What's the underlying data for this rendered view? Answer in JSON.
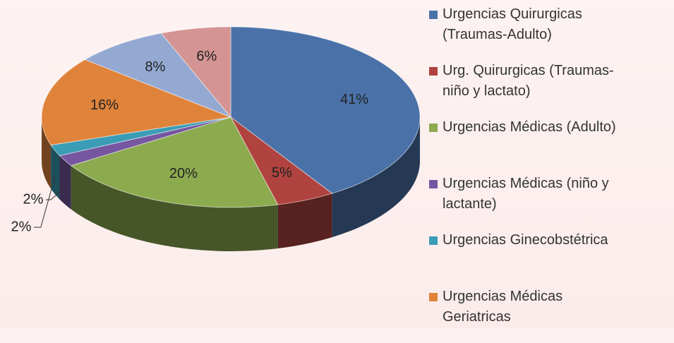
{
  "chart_data": {
    "type": "pie",
    "style": "3d",
    "categories": [
      "Urgencias Quirurgicas (Traumas-Adulto)",
      "Urg. Quirurgicas (Traumas-niño y lactato)",
      "Urgencias Médicas (Adulto)",
      "Urgencias Médicas (niño y lactante)",
      "Urgencias Ginecobstétrica",
      "Urgencias Médicas Geriatricas",
      null,
      null
    ],
    "values": [
      41,
      5,
      20,
      2,
      2,
      16,
      8,
      6
    ],
    "value_labels": [
      "41%",
      "5%",
      "20%",
      "2%",
      "2%",
      "16%",
      "8%",
      "6%"
    ],
    "colors": [
      "#4a72a8",
      "#b0433f",
      "#8cab4f",
      "#7656a0",
      "#3a9db5",
      "#e0833a",
      "#94a9d2",
      "#d49493"
    ],
    "legend": "right"
  }
}
